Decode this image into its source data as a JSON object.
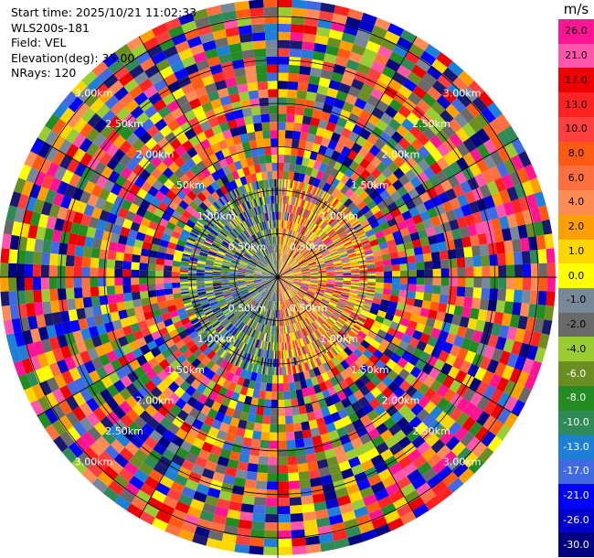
{
  "header": {
    "start_time": "Start time: 2025/10/21 11:02:33",
    "instrument": "WLS200s-181",
    "field": "Field: VEL",
    "elevation": "Elevation(deg): 35.00",
    "nrays": "NRays: 120"
  },
  "colorbar": {
    "unit": "m/s",
    "ticks": [
      "26.0",
      "21.0",
      "17.0",
      "13.0",
      "10.0",
      "8.0",
      "6.0",
      "4.0",
      "2.0",
      "1.0",
      "0.0",
      "-1.0",
      "-2.0",
      "-4.0",
      "-6.0",
      "-8.0",
      "-10.0",
      "-13.0",
      "-17.0",
      "-21.0",
      "-26.0",
      "-30.0"
    ],
    "colors": [
      "#ff1493",
      "#ff55aa",
      "#ee0000",
      "#ff2222",
      "#ff3e3e",
      "#ff5a14",
      "#ff7040",
      "#ff8c55",
      "#ffa000",
      "#ffd700",
      "#ffff00",
      "#778899",
      "#696969",
      "#9acd32",
      "#6b8e23",
      "#228b22",
      "#2e8b57",
      "#1e7fd8",
      "#4169e1",
      "#0000ff",
      "#0000cd",
      "#000080",
      "#191970"
    ],
    "value_labels": [
      "26.0",
      "21.0",
      "17.0",
      "13.0",
      "10.0",
      "8.0",
      "6.0",
      "4.0",
      "2.0",
      "1.0",
      "0.0",
      "-1.0",
      "-2.0",
      "-4.0",
      "-6.0",
      "-8.0",
      "-10.0",
      "-13.0",
      "-17.0",
      "-21.0",
      "-26.0",
      "-30.0"
    ]
  },
  "chart_data": {
    "type": "heatmap",
    "projection": "polar-ppi",
    "field": "VEL",
    "units": "m/s",
    "nrays": 120,
    "value_range": [
      -30,
      30
    ],
    "range_rings_km": [
      0.5,
      1.0,
      1.5,
      2.0,
      2.5,
      3.0
    ],
    "range_ring_labels": [
      "0.50km",
      "1.00km",
      "1.50km",
      "2.00km",
      "2.50km",
      "3.00km"
    ]
  }
}
